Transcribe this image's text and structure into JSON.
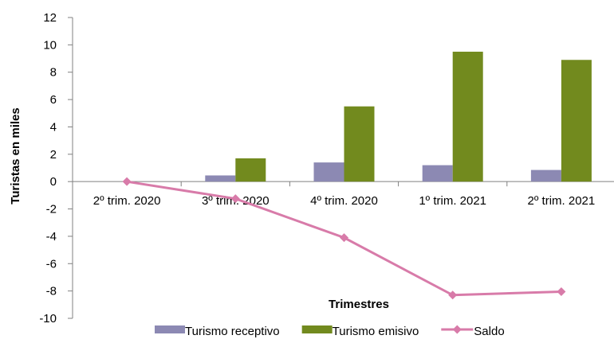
{
  "chart_data": {
    "type": "bar",
    "title": "",
    "xlabel": "Trimestres",
    "ylabel": "Turistas en miles",
    "categories": [
      "2º trim. 2020",
      "3º trim. 2020",
      "4º trim. 2020",
      "1º trim. 2021",
      "2º trim. 2021"
    ],
    "ylim": [
      -10,
      12
    ],
    "yticks": [
      12,
      10,
      8,
      6,
      4,
      2,
      0,
      -2,
      -4,
      -6,
      -8,
      -10
    ],
    "grid": false,
    "legend_position": "bottom",
    "series": [
      {
        "name": "Turismo receptivo",
        "type": "bar",
        "color": "#8c89b3",
        "values": [
          0,
          0.45,
          1.4,
          1.2,
          0.85
        ]
      },
      {
        "name": "Turismo emisivo",
        "type": "bar",
        "color": "#728a1e",
        "values": [
          0,
          1.7,
          5.5,
          9.5,
          8.9
        ]
      },
      {
        "name": "Saldo",
        "type": "line",
        "marker": "diamond",
        "color": "#d87ba9",
        "values": [
          0,
          -1.25,
          -4.1,
          -8.3,
          -8.05
        ]
      }
    ]
  }
}
